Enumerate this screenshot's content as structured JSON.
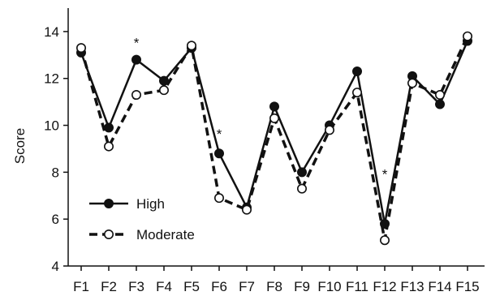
{
  "chart_data": {
    "type": "line",
    "title": "",
    "xlabel": "",
    "ylabel": "Score",
    "categories": [
      "F1",
      "F2",
      "F3",
      "F4",
      "F5",
      "F6",
      "F7",
      "F8",
      "F9",
      "F10",
      "F11",
      "F12",
      "F13",
      "F14",
      "F15"
    ],
    "ylim": [
      4,
      15
    ],
    "yticks": [
      4,
      6,
      8,
      10,
      12,
      14
    ],
    "grid": false,
    "legend": "bottom-left",
    "series": [
      {
        "name": "High",
        "style": "solid",
        "marker": "filled-circle",
        "values": [
          13.1,
          9.9,
          12.8,
          11.9,
          13.3,
          8.8,
          6.5,
          10.8,
          8.0,
          10.0,
          12.3,
          5.8,
          12.1,
          10.9,
          13.6
        ]
      },
      {
        "name": "Moderate",
        "style": "dashed",
        "marker": "open-circle",
        "values": [
          13.3,
          9.1,
          11.3,
          11.5,
          13.4,
          6.9,
          6.4,
          10.3,
          7.3,
          9.8,
          11.4,
          5.1,
          11.8,
          11.3,
          13.8
        ]
      }
    ],
    "annotations": [
      {
        "text": "*",
        "category": "F3",
        "y": 13.6
      },
      {
        "text": "*",
        "category": "F6",
        "y": 9.7
      },
      {
        "text": "*",
        "category": "F12",
        "y": 8.0
      }
    ],
    "colors": {
      "line": "#111111",
      "background": "#ffffff"
    }
  }
}
